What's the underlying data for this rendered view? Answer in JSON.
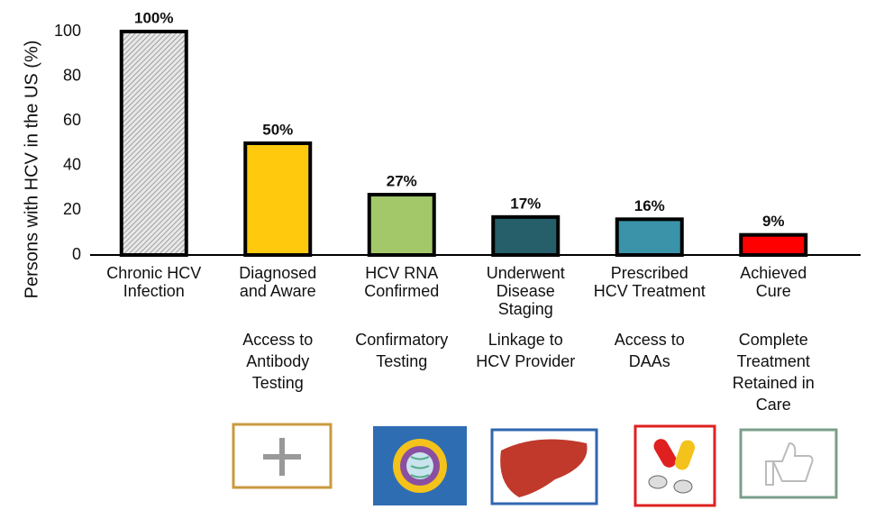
{
  "chart_data": {
    "type": "bar",
    "y_label": "Persons with HCV in the US (%)",
    "categories": [
      [
        "Chronic HCV",
        "Infection"
      ],
      [
        "Diagnosed",
        "and Aware"
      ],
      [
        "HCV RNA",
        "Confirmed"
      ],
      [
        "Underwent",
        "Disease",
        "Staging"
      ],
      [
        "Prescribed",
        "HCV Treatment"
      ],
      [
        "Achieved",
        "Cure"
      ]
    ],
    "values": [
      100,
      50,
      27,
      17,
      16,
      9
    ],
    "value_labels": [
      "100%",
      "50%",
      "27%",
      "17%",
      "16%",
      "9%"
    ],
    "colors": [
      "#cfcfcf",
      "#ffc90e",
      "#a3c86a",
      "#265e6a",
      "#3a93a8",
      "#ff0000"
    ],
    "steps": [
      null,
      [
        "Access to",
        "Antibody",
        "Testing"
      ],
      [
        "Confirmatory",
        "Testing"
      ],
      [
        "Linkage to",
        "HCV Provider"
      ],
      [
        "Access to",
        "DAAs"
      ],
      [
        "Complete",
        "Treatment",
        "Retained in",
        "Care"
      ]
    ],
    "ylim": [
      0,
      100
    ],
    "yticks": [
      0,
      20,
      40,
      60,
      80,
      100
    ]
  }
}
